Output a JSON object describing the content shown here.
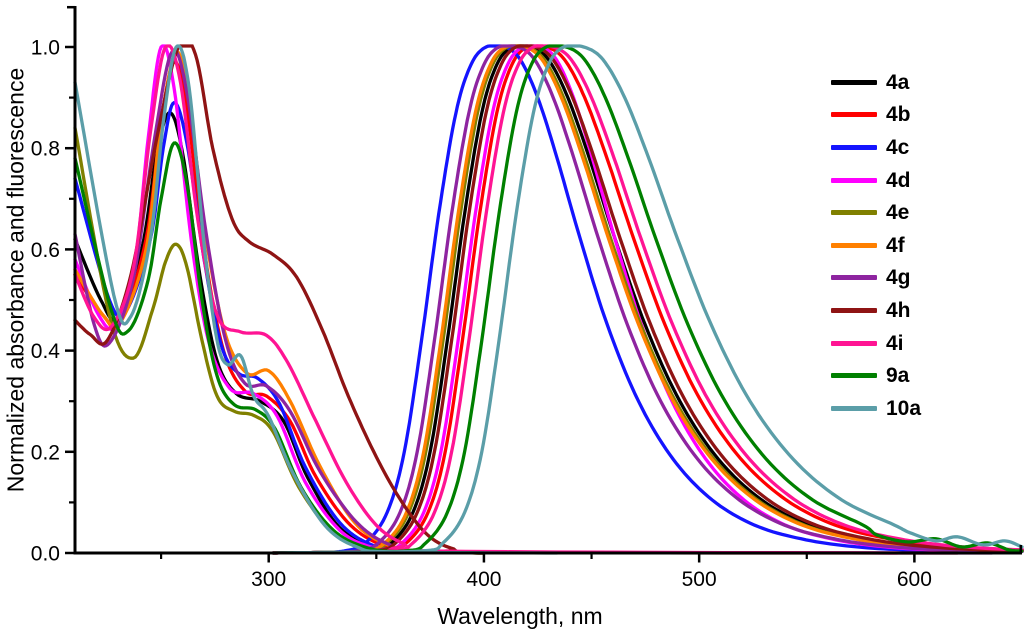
{
  "colors": {
    "background": "#FFFFFF",
    "axis": "#000000",
    "tick_label": "#000000"
  },
  "axes": {
    "x": {
      "major_ticks": [
        {
          "value": 300,
          "label": "300"
        },
        {
          "value": 400,
          "label": "400"
        },
        {
          "value": 500,
          "label": "500"
        },
        {
          "value": 600,
          "label": "600"
        }
      ],
      "minor_ticks": [
        250,
        350,
        450,
        550
      ]
    },
    "y": {
      "major_ticks": [
        {
          "value": 0.0,
          "label": "0.0"
        },
        {
          "value": 0.2,
          "label": "0.2"
        },
        {
          "value": 0.4,
          "label": "0.4"
        },
        {
          "value": 0.6,
          "label": "0.6"
        },
        {
          "value": 0.8,
          "label": "0.8"
        },
        {
          "value": 1.0,
          "label": "1.0"
        }
      ],
      "minor_ticks": [
        0.1,
        0.3,
        0.5,
        0.7,
        0.9
      ]
    }
  },
  "chart_data": {
    "type": "line",
    "title": "",
    "xlabel": "Wavelength, nm",
    "ylabel": "Normalized absorbance and fluorescence",
    "xlim": [
      210,
      650
    ],
    "ylim": [
      0,
      1.08
    ],
    "grid": false,
    "legend_position": "right",
    "emission_base_shape": [
      [
        -72,
        0.004
      ],
      [
        -62,
        0.02
      ],
      [
        -52,
        0.08
      ],
      [
        -44,
        0.2
      ],
      [
        -36,
        0.42
      ],
      [
        -28,
        0.67
      ],
      [
        -20,
        0.87
      ],
      [
        -13,
        0.965
      ],
      [
        -6,
        1.0
      ],
      [
        3,
        1.0
      ],
      [
        11,
        0.975
      ],
      [
        20,
        0.9
      ],
      [
        30,
        0.78
      ],
      [
        42,
        0.62
      ],
      [
        56,
        0.45
      ],
      [
        72,
        0.3
      ],
      [
        90,
        0.185
      ],
      [
        110,
        0.105
      ],
      [
        132,
        0.055
      ],
      [
        156,
        0.028
      ],
      [
        182,
        0.013
      ],
      [
        210,
        0.006
      ],
      [
        240,
        0.003
      ]
    ],
    "series": [
      {
        "name": "4a",
        "color": "#000000",
        "absorption_points": [
          [
            210,
            0.62
          ],
          [
            222,
            0.5
          ],
          [
            230,
            0.465
          ],
          [
            241,
            0.6
          ],
          [
            248,
            0.79
          ],
          [
            254,
            0.87
          ],
          [
            260,
            0.79
          ],
          [
            268,
            0.55
          ],
          [
            276,
            0.38
          ],
          [
            285,
            0.315
          ],
          [
            296,
            0.3
          ],
          [
            307,
            0.26
          ],
          [
            318,
            0.15
          ],
          [
            333,
            0.05
          ],
          [
            350,
            0.012
          ],
          [
            368,
            0.002
          ],
          [
            400,
            0
          ]
        ],
        "emission": {
          "peak_nm": 419,
          "peak_value": 1.0,
          "right_scale": 1.0
        }
      },
      {
        "name": "4b",
        "color": "#FF0000",
        "absorption_points": [
          [
            210,
            0.55
          ],
          [
            223,
            0.47
          ],
          [
            231,
            0.455
          ],
          [
            243,
            0.62
          ],
          [
            250,
            0.85
          ],
          [
            256,
            0.97
          ],
          [
            262,
            0.88
          ],
          [
            270,
            0.6
          ],
          [
            279,
            0.4
          ],
          [
            289,
            0.32
          ],
          [
            299,
            0.31
          ],
          [
            310,
            0.26
          ],
          [
            322,
            0.15
          ],
          [
            338,
            0.055
          ],
          [
            355,
            0.012
          ],
          [
            372,
            0.002
          ],
          [
            400,
            0
          ]
        ],
        "emission": {
          "peak_nm": 426,
          "peak_value": 1.0,
          "right_scale": 1.04
        }
      },
      {
        "name": "4c",
        "color": "#1414FF",
        "absorption_points": [
          [
            210,
            0.74
          ],
          [
            226,
            0.5
          ],
          [
            234,
            0.48
          ],
          [
            245,
            0.62
          ],
          [
            251,
            0.8
          ],
          [
            256,
            0.89
          ],
          [
            262,
            0.81
          ],
          [
            270,
            0.58
          ],
          [
            278,
            0.41
          ],
          [
            286,
            0.355
          ],
          [
            295,
            0.345
          ],
          [
            305,
            0.295
          ],
          [
            317,
            0.17
          ],
          [
            333,
            0.06
          ],
          [
            349,
            0.014
          ],
          [
            366,
            0.002
          ],
          [
            400,
            0
          ]
        ],
        "emission": {
          "peak_nm": 407,
          "peak_value": 1.0,
          "right_scale": 0.9
        }
      },
      {
        "name": "4d",
        "color": "#FF00FF",
        "absorption_points": [
          [
            210,
            0.58
          ],
          [
            221,
            0.47
          ],
          [
            229,
            0.45
          ],
          [
            238,
            0.58
          ],
          [
            244,
            0.82
          ],
          [
            250,
            1.0
          ],
          [
            256,
            0.92
          ],
          [
            264,
            0.62
          ],
          [
            272,
            0.42
          ],
          [
            282,
            0.325
          ],
          [
            293,
            0.315
          ],
          [
            304,
            0.27
          ],
          [
            317,
            0.14
          ],
          [
            333,
            0.045
          ],
          [
            349,
            0.01
          ],
          [
            366,
            0.002
          ],
          [
            400,
            0
          ]
        ],
        "emission": {
          "peak_nm": 424,
          "peak_value": 1.0,
          "right_scale": 0.88
        }
      },
      {
        "name": "4e",
        "color": "#808000",
        "absorption_points": [
          [
            210,
            0.84
          ],
          [
            226,
            0.47
          ],
          [
            237,
            0.385
          ],
          [
            246,
            0.48
          ],
          [
            252,
            0.575
          ],
          [
            257,
            0.61
          ],
          [
            262,
            0.565
          ],
          [
            269,
            0.42
          ],
          [
            276,
            0.31
          ],
          [
            284,
            0.28
          ],
          [
            293,
            0.272
          ],
          [
            302,
            0.24
          ],
          [
            314,
            0.13
          ],
          [
            329,
            0.045
          ],
          [
            345,
            0.01
          ],
          [
            362,
            0.002
          ],
          [
            400,
            0
          ]
        ],
        "emission": {
          "peak_nm": 417,
          "peak_value": 1.0,
          "right_scale": 1.0
        }
      },
      {
        "name": "4f",
        "color": "#FF8000",
        "absorption_points": [
          [
            210,
            0.56
          ],
          [
            223,
            0.47
          ],
          [
            231,
            0.455
          ],
          [
            243,
            0.6
          ],
          [
            250,
            0.85
          ],
          [
            257,
            0.99
          ],
          [
            263,
            0.89
          ],
          [
            271,
            0.62
          ],
          [
            280,
            0.43
          ],
          [
            290,
            0.355
          ],
          [
            300,
            0.36
          ],
          [
            310,
            0.3
          ],
          [
            324,
            0.17
          ],
          [
            340,
            0.06
          ],
          [
            356,
            0.015
          ],
          [
            374,
            0.002
          ],
          [
            400,
            0
          ]
        ],
        "emission": {
          "peak_nm": 416,
          "peak_value": 1.0,
          "right_scale": 1.0
        }
      },
      {
        "name": "4g",
        "color": "#8E24A0",
        "absorption_points": [
          [
            210,
            0.63
          ],
          [
            219,
            0.45
          ],
          [
            226,
            0.415
          ],
          [
            237,
            0.54
          ],
          [
            247,
            0.82
          ],
          [
            255,
            0.99
          ],
          [
            262,
            0.91
          ],
          [
            271,
            0.63
          ],
          [
            280,
            0.42
          ],
          [
            289,
            0.335
          ],
          [
            299,
            0.33
          ],
          [
            310,
            0.28
          ],
          [
            324,
            0.16
          ],
          [
            341,
            0.06
          ],
          [
            357,
            0.015
          ],
          [
            375,
            0.002
          ],
          [
            636,
            0
          ]
        ],
        "emission": {
          "peak_nm": 413,
          "peak_value": 1.0,
          "right_scale": 0.96
        }
      },
      {
        "name": "4h",
        "color": "#8F1414",
        "absorption_points": [
          [
            210,
            0.46
          ],
          [
            217,
            0.432
          ],
          [
            225,
            0.42
          ],
          [
            236,
            0.55
          ],
          [
            248,
            0.82
          ],
          [
            258,
            1.0
          ],
          [
            266,
            0.985
          ],
          [
            274,
            0.8
          ],
          [
            283,
            0.66
          ],
          [
            291,
            0.615
          ],
          [
            302,
            0.59
          ],
          [
            313,
            0.545
          ],
          [
            325,
            0.44
          ],
          [
            337,
            0.31
          ],
          [
            350,
            0.19
          ],
          [
            362,
            0.1
          ],
          [
            374,
            0.035
          ],
          [
            386,
            0.008
          ],
          [
            400,
            0.001
          ],
          [
            620,
            0
          ]
        ],
        "emission": {
          "peak_nm": 421,
          "peak_value": 1.0,
          "right_scale": 1.01
        }
      },
      {
        "name": "4i",
        "color": "#FF1493",
        "absorption_points": [
          [
            210,
            0.55
          ],
          [
            219,
            0.465
          ],
          [
            227,
            0.448
          ],
          [
            237,
            0.56
          ],
          [
            245,
            0.83
          ],
          [
            252,
            1.0
          ],
          [
            259,
            0.93
          ],
          [
            267,
            0.66
          ],
          [
            276,
            0.47
          ],
          [
            287,
            0.437
          ],
          [
            299,
            0.43
          ],
          [
            309,
            0.375
          ],
          [
            322,
            0.26
          ],
          [
            336,
            0.14
          ],
          [
            350,
            0.055
          ],
          [
            363,
            0.018
          ],
          [
            377,
            0.004
          ],
          [
            592,
            0
          ]
        ],
        "emission": {
          "peak_nm": 429,
          "peak_value": 1.0,
          "right_scale": 1.05
        }
      },
      {
        "name": "9a",
        "color": "#008000",
        "absorption_points": [
          [
            210,
            0.78
          ],
          [
            227,
            0.478
          ],
          [
            235,
            0.44
          ],
          [
            244,
            0.54
          ],
          [
            250,
            0.7
          ],
          [
            256,
            0.81
          ],
          [
            262,
            0.73
          ],
          [
            269,
            0.5
          ],
          [
            276,
            0.35
          ],
          [
            284,
            0.293
          ],
          [
            294,
            0.283
          ],
          [
            303,
            0.245
          ],
          [
            315,
            0.13
          ],
          [
            330,
            0.045
          ],
          [
            346,
            0.01
          ],
          [
            363,
            0.002
          ],
          [
            400,
            0
          ]
        ],
        "emission": {
          "peak_nm": 435,
          "peak_value": 1.0,
          "right_scale": 1.07,
          "tail_points": [
            [
              583,
              0.035
            ],
            [
              597,
              0.022
            ],
            [
              610,
              0.028
            ],
            [
              622,
              0.012
            ],
            [
              634,
              0.02
            ],
            [
              644,
              0.006
            ],
            [
              650,
              0.004
            ]
          ]
        }
      },
      {
        "name": "10a",
        "color": "#5B9EA8",
        "absorption_points": [
          [
            210,
            0.93
          ],
          [
            228,
            0.51
          ],
          [
            236,
            0.468
          ],
          [
            245,
            0.62
          ],
          [
            251,
            0.85
          ],
          [
            257,
            1.0
          ],
          [
            263,
            0.92
          ],
          [
            270,
            0.61
          ],
          [
            276,
            0.42
          ],
          [
            281,
            0.372
          ],
          [
            287,
            0.39
          ],
          [
            293,
            0.31
          ],
          [
            300,
            0.27
          ],
          [
            311,
            0.16
          ],
          [
            326,
            0.055
          ],
          [
            341,
            0.012
          ],
          [
            358,
            0.002
          ],
          [
            434,
            0
          ]
        ],
        "emission": {
          "peak_nm": 443,
          "peak_value": 1.0,
          "right_scale": 1.12,
          "tail_points": [
            [
              598,
              0.04
            ],
            [
              610,
              0.024
            ],
            [
              620,
              0.032
            ],
            [
              632,
              0.016
            ],
            [
              642,
              0.024
            ],
            [
              650,
              0.012
            ]
          ]
        }
      }
    ]
  }
}
